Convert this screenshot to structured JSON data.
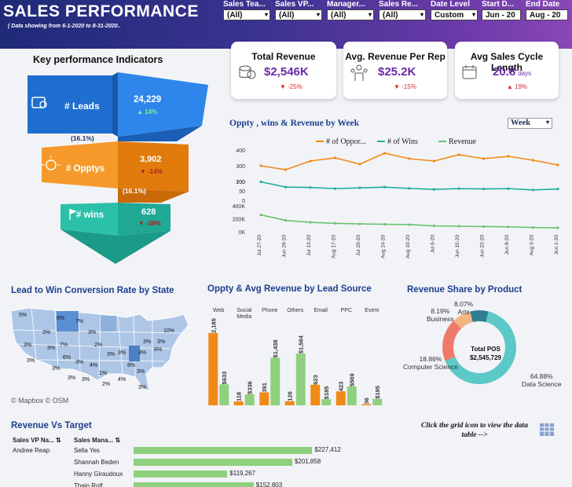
{
  "header": {
    "title": "SALES PERFORMANCE",
    "subtitle": "( Data showing from 6-1-2020 to 8-31-2020..",
    "filters": [
      {
        "label": "Sales Tea...",
        "value": "(All)"
      },
      {
        "label": "Sales VP...",
        "value": "(All)"
      },
      {
        "label": "Manager...",
        "value": "(All)"
      },
      {
        "label": "Sales Re...",
        "value": "(All)"
      },
      {
        "label": "Date Level",
        "value": "Custom"
      },
      {
        "label": "Start D...",
        "value": "Jun - 20"
      },
      {
        "label": "End Date",
        "value": "Aug - 20"
      }
    ]
  },
  "kpi": {
    "title": "Key performance Indicators",
    "cards": [
      {
        "title": "Total Revenue",
        "value": "$2,546K",
        "unit": "",
        "delta": "▼ -25%",
        "icon": "coins-icon"
      },
      {
        "title": "Avg. Revenue Per Rep",
        "value": "$25.2K",
        "unit": "",
        "delta": "▼ -15%",
        "icon": "team-icon"
      },
      {
        "title": "Avg Sales Cycle Length",
        "value": "20.8",
        "unit": "days",
        "delta": "▲ 19%",
        "icon": "calendar-icon"
      }
    ],
    "funnel": {
      "leads": {
        "label": "# Leads",
        "value": "24,229",
        "delta": "▲ 14%"
      },
      "rate1": "(16.1%)",
      "opptys": {
        "label": "# Opptys",
        "value": "3,902",
        "delta": "▼ -14%"
      },
      "rate2": "(16.1%)",
      "wins": {
        "label": "# wins",
        "value": "628",
        "delta": "▼ -38%"
      }
    },
    "colors": {
      "leads": "#1e6fd0",
      "opptys": "#f08a17",
      "wins": "#1fae9a"
    }
  },
  "weekly": {
    "title": "Oppty , wins & Revenue by Week",
    "dropdown": "Week",
    "legend": [
      "# of Oppor...",
      "# of Wins",
      "Revenue"
    ],
    "colors": [
      "#f08a17",
      "#1fae9a",
      "#6cc070"
    ],
    "ticks_opp": [
      "400",
      "300",
      "200"
    ],
    "ticks_wins": [
      "100",
      "50",
      "0"
    ],
    "ticks_rev": [
      "400K",
      "200K",
      "0K"
    ],
    "dates": [
      "Jul 27-20",
      "Jun 29-20",
      "Jul 13-20",
      "Aug 17-20",
      "Jul 20-20",
      "Aug 24-20",
      "Aug 10-20",
      "Jul 6-20",
      "Jun 15-20",
      "Jun 22-20",
      "Jun 8-20",
      "Aug 3-20",
      "Jun 1-20"
    ],
    "opp": [
      300,
      275,
      330,
      350,
      310,
      380,
      345,
      330,
      370,
      345,
      360,
      335,
      305
    ],
    "wins": [
      98,
      70,
      68,
      62,
      66,
      70,
      63,
      58,
      62,
      60,
      62,
      55,
      60
    ],
    "rev": [
      260000,
      175000,
      145000,
      130000,
      120000,
      115000,
      110000,
      90000,
      85000,
      80000,
      75000,
      65000,
      60000
    ]
  },
  "map": {
    "title": "Lead to Win Conversion Rate by State",
    "attribution": "© Mapbox © OSM",
    "labels": [
      "5%",
      "6%",
      "3%",
      "7%",
      "3%",
      "3%",
      "2%",
      "7%",
      "10%",
      "3%",
      "6%",
      "3%",
      "3%",
      "4%",
      "1%",
      "8%",
      "3%",
      "4%",
      "3%",
      "3%",
      "3%",
      "3%",
      "3%",
      "3%",
      "3%",
      "3%",
      "8%",
      "2%",
      "3%"
    ]
  },
  "lead_source": {
    "title": "Oppty & Avg Revenue by Lead Source",
    "sources": [
      "Web",
      "Social Media",
      "Phone",
      "Others",
      "Email",
      "PPC",
      "Event"
    ],
    "oppty": [
      2185,
      118,
      391,
      126,
      623,
      423,
      36
    ],
    "revenue": [
      633,
      336,
      1438,
      1564,
      185,
      569,
      195
    ],
    "labels_oppty": [
      "2,185",
      "118",
      "391",
      "126",
      "623",
      "423",
      "36"
    ],
    "labels_revenue": [
      "$633",
      "$336",
      "$1,438",
      "$1,564",
      "$185",
      "$569",
      "$195"
    ],
    "colors": {
      "oppty": "#f08a17",
      "revenue": "#8fd07e"
    }
  },
  "product_share": {
    "title": "Revenue Share by Product",
    "center_label": "Total POS",
    "center_value": "$2,545,729",
    "slices": [
      {
        "name": "Data Science",
        "pct": "64.88%",
        "color": "#5cc8c8"
      },
      {
        "name": "Computer Science",
        "pct": "18.86%",
        "color": "#f07a6a"
      },
      {
        "name": "Business",
        "pct": "8.19%",
        "color": "#f3b483"
      },
      {
        "name": "Arts",
        "pct": "8.07%",
        "color": "#2e7f8f"
      }
    ]
  },
  "revenue_target": {
    "title": "Revenue Vs Target",
    "col1": "Sales VP Na...",
    "col2": "Sales Mana...",
    "vp": "Andree Reap",
    "rows": [
      {
        "name": "Sella Yes",
        "value": "$227,412",
        "amount": 227412
      },
      {
        "name": "Shannah Beden",
        "value": "$201,858",
        "amount": 201858
      },
      {
        "name": "Hanny Giraudoux",
        "value": "$119,267",
        "amount": 119267
      },
      {
        "name": "Thain Rolf",
        "value": "$152,803",
        "amount": 152803
      }
    ],
    "grid_note": "Click the grid icon to view the data table -->"
  }
}
